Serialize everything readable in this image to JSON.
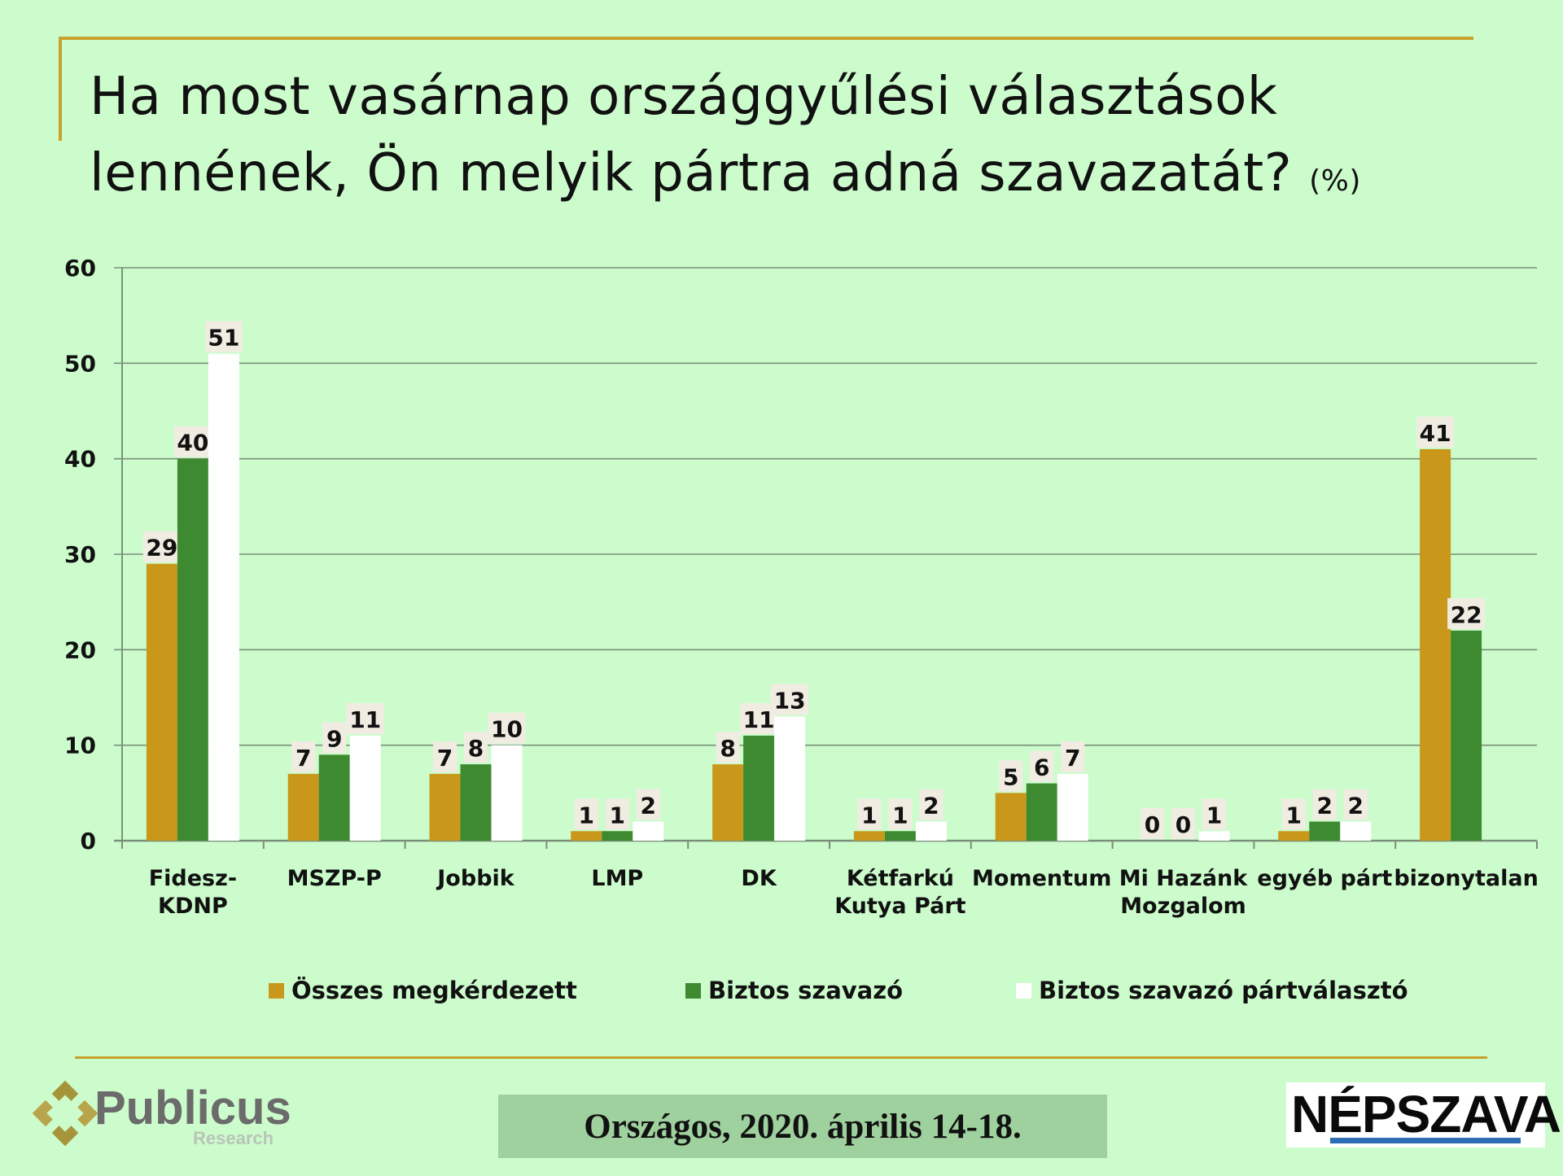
{
  "title": {
    "main": "Ha most vasárnap országgyűlési választások lennének, Ön melyik pártra adná szavazatát?",
    "unit": "(%)"
  },
  "chart_data": {
    "type": "bar",
    "title": "Ha most vasárnap országgyűlési választások lennének, Ön melyik pártra adná szavazatát? (%)",
    "xlabel": "",
    "ylabel": "",
    "ylim": [
      0,
      60
    ],
    "yticks": [
      0,
      10,
      20,
      30,
      40,
      50,
      60
    ],
    "grid": true,
    "legend_position": "bottom",
    "categories": [
      [
        "Fidesz-",
        "KDNP"
      ],
      [
        "MSZP-P"
      ],
      [
        "Jobbik"
      ],
      [
        "LMP"
      ],
      [
        "DK"
      ],
      [
        "Kétfarkú",
        "Kutya Párt"
      ],
      [
        "Momentum"
      ],
      [
        "Mi Hazánk",
        "Mozgalom"
      ],
      [
        "egyéb párt"
      ],
      [
        "bizonytalan"
      ]
    ],
    "series": [
      {
        "name": "Összes megkérdezett",
        "color": "#c9981a",
        "values": [
          29,
          7,
          7,
          1,
          8,
          1,
          5,
          0,
          1,
          41
        ]
      },
      {
        "name": "Biztos szavazó",
        "color": "#3e8a30",
        "values": [
          40,
          9,
          8,
          1,
          11,
          1,
          6,
          0,
          2,
          22
        ]
      },
      {
        "name": "Biztos szavazó pártválasztó",
        "color": "#ffffff",
        "values": [
          51,
          11,
          10,
          2,
          13,
          2,
          7,
          1,
          2,
          null
        ]
      }
    ]
  },
  "footer": {
    "date": "Országos, 2020. április 14-18.",
    "left_logo_name": "Publicus",
    "left_logo_sub": "Research",
    "right_logo_name": "NÉPSZAVA"
  }
}
